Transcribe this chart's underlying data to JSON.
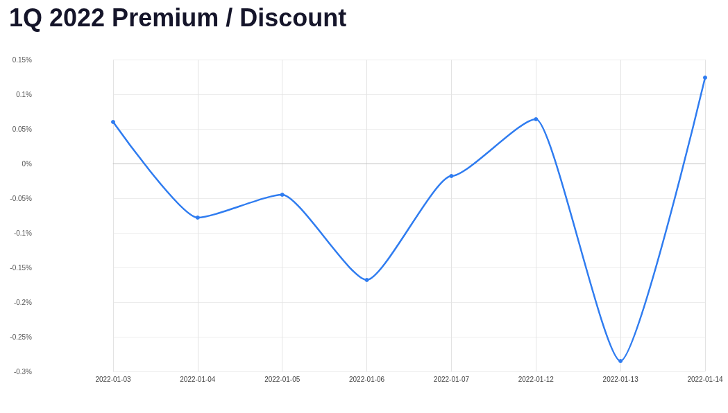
{
  "chart_data": {
    "type": "line",
    "title": "1Q 2022 Premium / Discount",
    "categories": [
      "2022-01-03",
      "2022-01-04",
      "2022-01-05",
      "2022-01-06",
      "2022-01-07",
      "2022-01-12",
      "2022-01-13",
      "2022-01-14"
    ],
    "series": [
      {
        "color": "#2f7cf0",
        "values": [
          0.06,
          -0.078,
          -0.045,
          -0.168,
          -0.018,
          0.064,
          -0.285,
          0.124
        ]
      }
    ],
    "ylim": [
      -0.3,
      0.15
    ],
    "yticks": [
      {
        "value": -0.3,
        "label": "-0.3%"
      },
      {
        "value": -0.25,
        "label": "-0.25%"
      },
      {
        "value": -0.2,
        "label": "-0.2%"
      },
      {
        "value": -0.15,
        "label": "-0.15%"
      },
      {
        "value": -0.1,
        "label": "-0.1%"
      },
      {
        "value": -0.05,
        "label": "-0.05%"
      },
      {
        "value": 0,
        "label": "0%"
      },
      {
        "value": 0.05,
        "label": "0.05%"
      },
      {
        "value": 0.1,
        "label": "0.1%"
      },
      {
        "value": 0.15,
        "label": "0.15%"
      }
    ],
    "grid": true,
    "marker": "circle",
    "line_style": "solid"
  }
}
